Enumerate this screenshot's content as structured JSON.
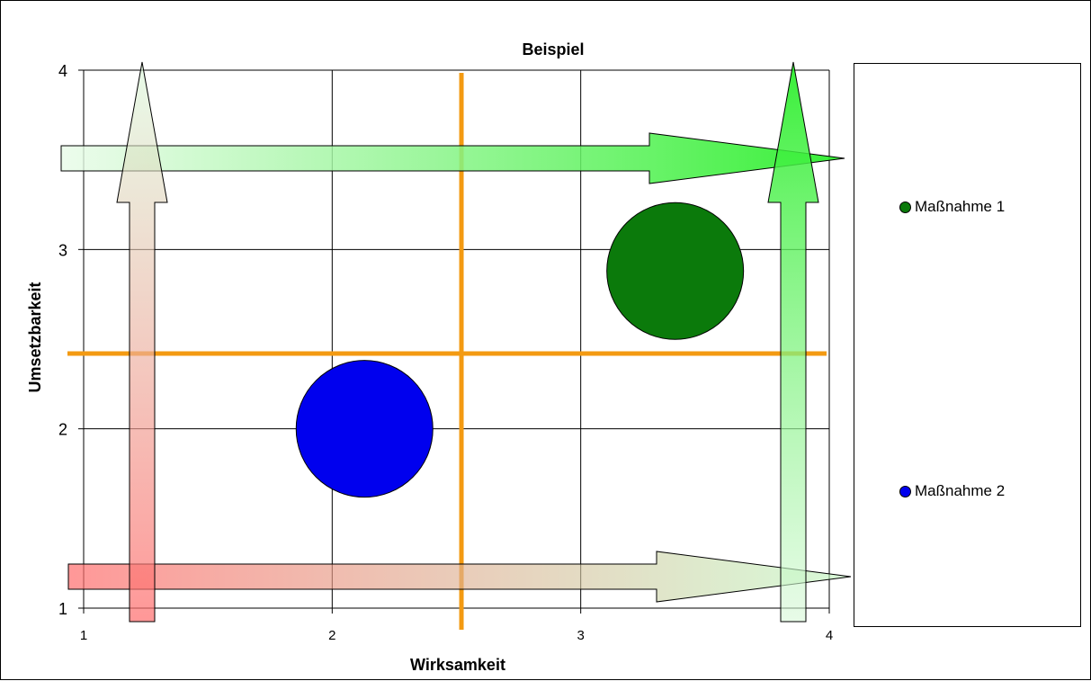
{
  "chart_data": {
    "type": "bubble",
    "title": "Beispiel",
    "xlabel": "Wirksamkeit",
    "ylabel": "Umsetzbarkeit",
    "xlim": [
      1,
      4
    ],
    "ylim": [
      1,
      4
    ],
    "xticks": [
      "1",
      "2",
      "3",
      "4"
    ],
    "yticks": [
      "1",
      "2",
      "3",
      "4"
    ],
    "grid": true,
    "legend_position": "right",
    "series": [
      {
        "name": "Maßnahme 1",
        "x": 3.38,
        "y": 2.88,
        "size": 1.0,
        "color": "#0b7a0b"
      },
      {
        "name": "Maßnahme 2",
        "x": 2.13,
        "y": 2.0,
        "size": 1.0,
        "color": "#0000ee"
      }
    ],
    "threshold_lines": {
      "x": 2.52,
      "y": 2.42,
      "color": "#f39a12"
    },
    "arrow_gradient": {
      "start": "#ff6b6b",
      "end": "#22ee22"
    }
  }
}
